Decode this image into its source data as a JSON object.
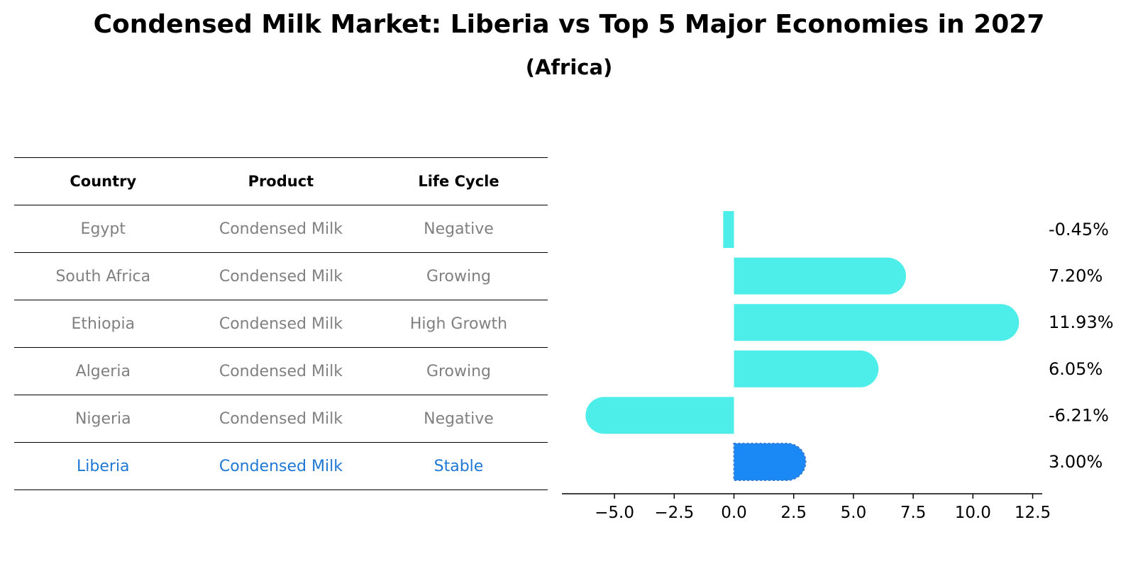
{
  "title": "Condensed Milk Market: Liberia vs Top 5 Major Economies in 2027",
  "subtitle": "(Africa)",
  "table": {
    "headers": [
      "Country",
      "Product",
      "Life Cycle"
    ],
    "rows": [
      {
        "country": "Egypt",
        "product": "Condensed Milk",
        "life_cycle": "Negative"
      },
      {
        "country": "South Africa",
        "product": "Condensed Milk",
        "life_cycle": "Growing"
      },
      {
        "country": "Ethiopia",
        "product": "Condensed Milk",
        "life_cycle": "High Growth"
      },
      {
        "country": "Algeria",
        "product": "Condensed Milk",
        "life_cycle": "Growing"
      },
      {
        "country": "Nigeria",
        "product": "Condensed Milk",
        "life_cycle": "Negative"
      },
      {
        "country": "Liberia",
        "product": "Condensed Milk",
        "life_cycle": "Stable"
      }
    ]
  },
  "chart_data": {
    "type": "bar",
    "orientation": "horizontal",
    "categories": [
      "Egypt",
      "South Africa",
      "Ethiopia",
      "Algeria",
      "Nigeria",
      "Liberia"
    ],
    "values": [
      -0.45,
      7.2,
      11.93,
      6.05,
      -6.21,
      3.0
    ],
    "value_labels": [
      "-0.45%",
      "7.20%",
      "11.93%",
      "6.05%",
      "-6.21%",
      "3.00%"
    ],
    "xlim": [
      -7.2,
      12.9
    ],
    "xticks": [
      -5.0,
      -2.5,
      0.0,
      2.5,
      5.0,
      7.5,
      10.0,
      12.5
    ],
    "xtick_labels": [
      "−5.0",
      "−2.5",
      "0.0",
      "2.5",
      "5.0",
      "7.5",
      "10.0",
      "12.5"
    ],
    "highlight_category": "Liberia",
    "colors": {
      "bar": "#4deeea",
      "highlight": "#1a88f5",
      "highlight_text": "#1f77d4",
      "muted_text": "#808080"
    }
  }
}
